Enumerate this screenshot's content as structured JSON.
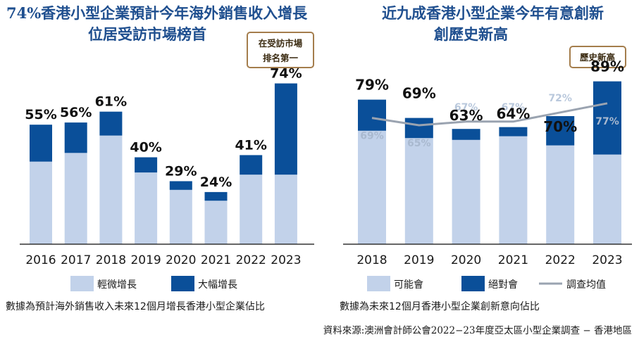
{
  "colors": {
    "light": "#c2d2ea",
    "dark": "#0a4f99",
    "avg_line": "#9aa3b0",
    "highlight_year": "#c62828",
    "badge_border": "#a47d4c",
    "title": "#1f4f8f"
  },
  "chart_data": [
    {
      "type": "bar",
      "stacked": true,
      "title": "74%香港小型企業預計今年海外銷售收入增長位居受訪市場榜首",
      "title_lines": [
        "74%香港小型企業預計今年海外銷售收入增長",
        "位居受訪市場榜首"
      ],
      "badge_lines": [
        "在受訪市場",
        "排名第一"
      ],
      "categories": [
        "2016",
        "2017",
        "2018",
        "2019",
        "2020",
        "2021",
        "2022",
        "2023"
      ],
      "highlight_category": "2023",
      "totals": [
        55,
        56,
        61,
        40,
        29,
        24,
        41,
        74
      ],
      "total_labels": [
        "55%",
        "56%",
        "61%",
        "40%",
        "29%",
        "24%",
        "41%",
        "74%"
      ],
      "series": [
        {
          "name": "輕微增長",
          "values": [
            38,
            42,
            50,
            33,
            25,
            20,
            32,
            32
          ]
        },
        {
          "name": "大幅增長",
          "values": [
            17,
            14,
            11,
            7,
            4,
            4,
            9,
            42
          ]
        }
      ],
      "ylim": [
        0,
        80
      ],
      "xlabel": "",
      "ylabel": "",
      "grid": false,
      "legend": "bottom",
      "note": "數據為預計海外銷售收入未來12個月增長香港小型企業佔比"
    },
    {
      "type": "bar",
      "stacked": true,
      "title": "近九成香港小型企業今年有意創新創歷史新高",
      "title_lines": [
        "近九成香港小型企業今年有意創新",
        "創歷史新高"
      ],
      "badge_lines": [
        "歷史新高"
      ],
      "categories": [
        "2018",
        "2019",
        "2020",
        "2021",
        "2022",
        "2023"
      ],
      "series": [
        {
          "name": "可能會",
          "values": [
            62,
            58,
            57,
            59,
            54,
            49
          ]
        },
        {
          "name": "絕對會",
          "values": [
            17,
            11,
            6,
            5,
            16,
            40
          ]
        },
        {
          "name": "調查均值",
          "type": "line",
          "values": [
            69,
            65,
            67,
            67,
            72,
            77
          ]
        }
      ],
      "total_labels": [
        "79%",
        "69%",
        "63%",
        "64%",
        "70%",
        "89%"
      ],
      "avg_labels": [
        "69%",
        "65%",
        "67%",
        "67%",
        "72%",
        "77%"
      ],
      "ylim": [
        0,
        95
      ],
      "xlabel": "",
      "ylabel": "",
      "grid": false,
      "legend": "bottom",
      "note": "數據為未來12個月香港小型企業創新意向佔比"
    }
  ],
  "source": "資料來源:澳洲會計師公會2022−23年度亞太區小型企業調查 − 香港地區"
}
